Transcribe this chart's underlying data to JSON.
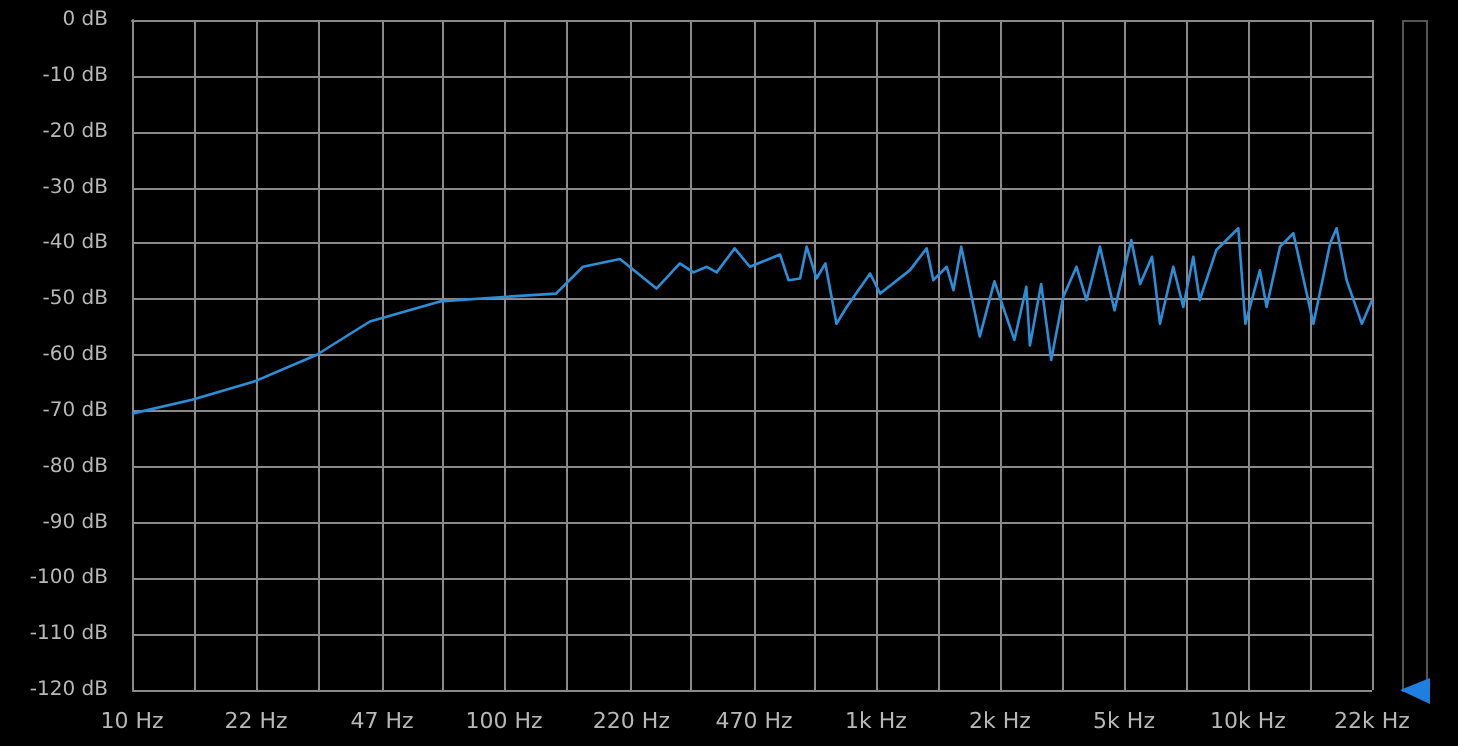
{
  "chart_data": {
    "type": "line",
    "log": "x",
    "grid": true,
    "marker": "none",
    "line_style": "solid",
    "xlim": [
      10,
      21544
    ],
    "xticks": [
      {
        "value": 10,
        "label": "10 Hz"
      },
      {
        "value": 14.68,
        "label": null
      },
      {
        "value": 21.54,
        "label": "22 Hz"
      },
      {
        "value": 31.62,
        "label": null
      },
      {
        "value": 47,
        "label": "47 Hz"
      },
      {
        "value": 68.13,
        "label": null
      },
      {
        "value": 100,
        "label": "100 Hz"
      },
      {
        "value": 146.8,
        "label": null
      },
      {
        "value": 220,
        "label": "220 Hz"
      },
      {
        "value": 316.2,
        "label": null
      },
      {
        "value": 470,
        "label": "470 Hz"
      },
      {
        "value": 681.3,
        "label": null
      },
      {
        "value": 1000,
        "label": "1k Hz"
      },
      {
        "value": 1468,
        "label": null
      },
      {
        "value": 2154,
        "label": "2k Hz"
      },
      {
        "value": 3162,
        "label": null
      },
      {
        "value": 4642,
        "label": "5k Hz"
      },
      {
        "value": 6813,
        "label": null
      },
      {
        "value": 10000,
        "label": "10k Hz"
      },
      {
        "value": 14678,
        "label": null
      },
      {
        "value": 21544,
        "label": "22k Hz"
      }
    ],
    "ylim": [
      -120,
      0
    ],
    "yticks": [
      {
        "value": -120,
        "label": "-120 dB"
      },
      {
        "value": -110,
        "label": "-110 dB"
      },
      {
        "value": -100,
        "label": "-100 dB"
      },
      {
        "value": -90,
        "label": "-90 dB"
      },
      {
        "value": -80,
        "label": "-80 dB"
      },
      {
        "value": -70,
        "label": "-70 dB"
      },
      {
        "value": -60,
        "label": "-60 dB"
      },
      {
        "value": -50,
        "label": "-50 dB"
      },
      {
        "value": -40,
        "label": "-40 dB"
      },
      {
        "value": -30,
        "label": "-30 dB"
      },
      {
        "value": -20,
        "label": "-20 dB"
      },
      {
        "value": -10,
        "label": "-10 dB"
      },
      {
        "value": 0,
        "label": "0 dB"
      }
    ],
    "x": [
      10,
      14.5,
      21.2,
      31.3,
      43.6,
      67.3,
      99.6,
      138,
      163,
      205,
      257,
      297,
      323,
      351,
      373,
      417,
      458,
      552,
      582,
      625,
      651,
      692,
      731,
      783,
      834,
      964,
      1026,
      1234,
      1368,
      1426,
      1549,
      1615,
      1695,
      1901,
      2081,
      2355,
      2536,
      2593,
      2780,
      2958,
      3186,
      3459,
      3681,
      4000,
      4375,
      4855,
      5129,
      5521,
      5800,
      6295,
      6700,
      7126,
      7413,
      8222,
      9419,
      9840,
      10765,
      11220,
      12190,
      13240,
      14990,
      16630,
      17300,
      18410,
      20230,
      21544
    ],
    "series": [
      {
        "color": "#2a8fd8",
        "values": [
          -70.5,
          -68,
          -64.8,
          -60,
          -54,
          -50.4,
          -49.6,
          -49,
          -44.2,
          -42.8,
          -48.1,
          -43.6,
          -45.2,
          -44.2,
          -45.2,
          -40.9,
          -44.2,
          -42,
          -46.6,
          -46.3,
          -40.6,
          -46.3,
          -43.6,
          -54.4,
          -51.4,
          -45.4,
          -49,
          -44.8,
          -40.9,
          -46.6,
          -44.2,
          -48.4,
          -40.6,
          -56.7,
          -46.8,
          -57.3,
          -47.8,
          -58.3,
          -47.3,
          -60.9,
          -49.6,
          -44.2,
          -50.2,
          -40.6,
          -52,
          -39.4,
          -47.3,
          -42.4,
          -54.4,
          -44.2,
          -51.4,
          -42.4,
          -50.2,
          -41.2,
          -37.3,
          -54.4,
          -44.8,
          -51.4,
          -40.6,
          -38.2,
          -54.4,
          -40,
          -37.3,
          -46.6,
          -54.4,
          -50.2
        ]
      }
    ]
  }
}
